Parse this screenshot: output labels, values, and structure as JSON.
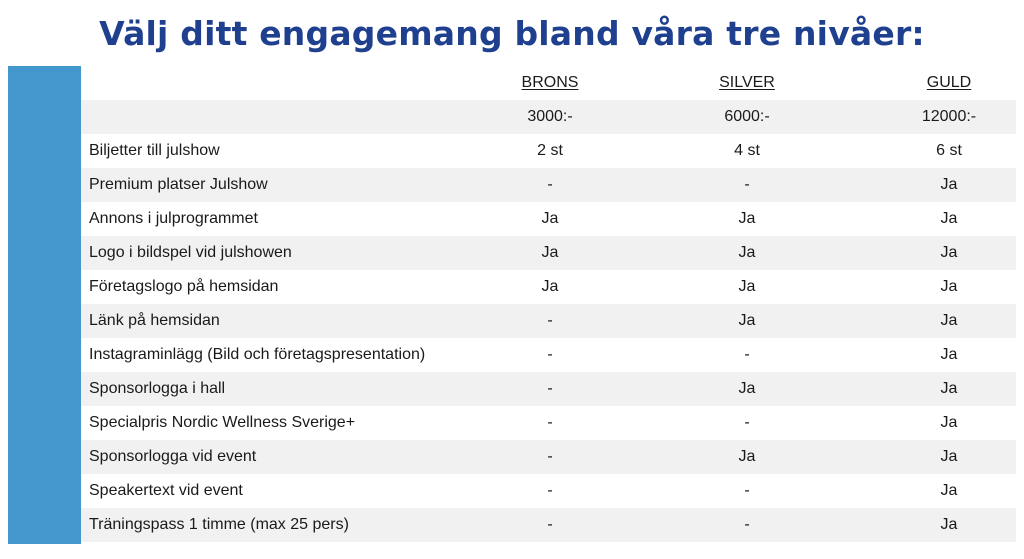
{
  "title": "Välj ditt engagemang bland våra tre nivåer:",
  "colors": {
    "title": "#1f3f8f",
    "side_bar": "#4497cd",
    "row_shade": "#f1f1f1"
  },
  "tiers": [
    "BRONS",
    "SILVER",
    "GULD"
  ],
  "prices": [
    "3000:-",
    "6000:-",
    "12000:-"
  ],
  "rows": [
    {
      "label": "Biljetter till julshow",
      "values": [
        "2 st",
        "4 st",
        "6 st"
      ]
    },
    {
      "label": "Premium platser Julshow",
      "values": [
        "-",
        "-",
        "Ja"
      ]
    },
    {
      "label": "Annons i julprogrammet",
      "values": [
        "Ja",
        "Ja",
        "Ja"
      ]
    },
    {
      "label": "Logo i bildspel vid julshowen",
      "values": [
        "Ja",
        "Ja",
        "Ja"
      ]
    },
    {
      "label": "Företagslogo på hemsidan",
      "values": [
        "Ja",
        "Ja",
        "Ja"
      ]
    },
    {
      "label": "Länk på hemsidan",
      "values": [
        "-",
        "Ja",
        "Ja"
      ]
    },
    {
      "label": "Instagraminlägg (Bild och företagspresentation)",
      "values": [
        "-",
        "-",
        "Ja"
      ]
    },
    {
      "label": "Sponsorlogga i hall",
      "values": [
        "-",
        "Ja",
        "Ja"
      ]
    },
    {
      "label": "Specialpris Nordic Wellness Sverige+",
      "values": [
        "-",
        "-",
        "Ja"
      ]
    },
    {
      "label": "Sponsorlogga vid event",
      "values": [
        "-",
        "Ja",
        "Ja"
      ]
    },
    {
      "label": "Speakertext vid event",
      "values": [
        "-",
        "-",
        "Ja"
      ]
    },
    {
      "label": "Träningspass 1 timme (max 25 pers)",
      "values": [
        "-",
        "-",
        "Ja"
      ]
    }
  ]
}
